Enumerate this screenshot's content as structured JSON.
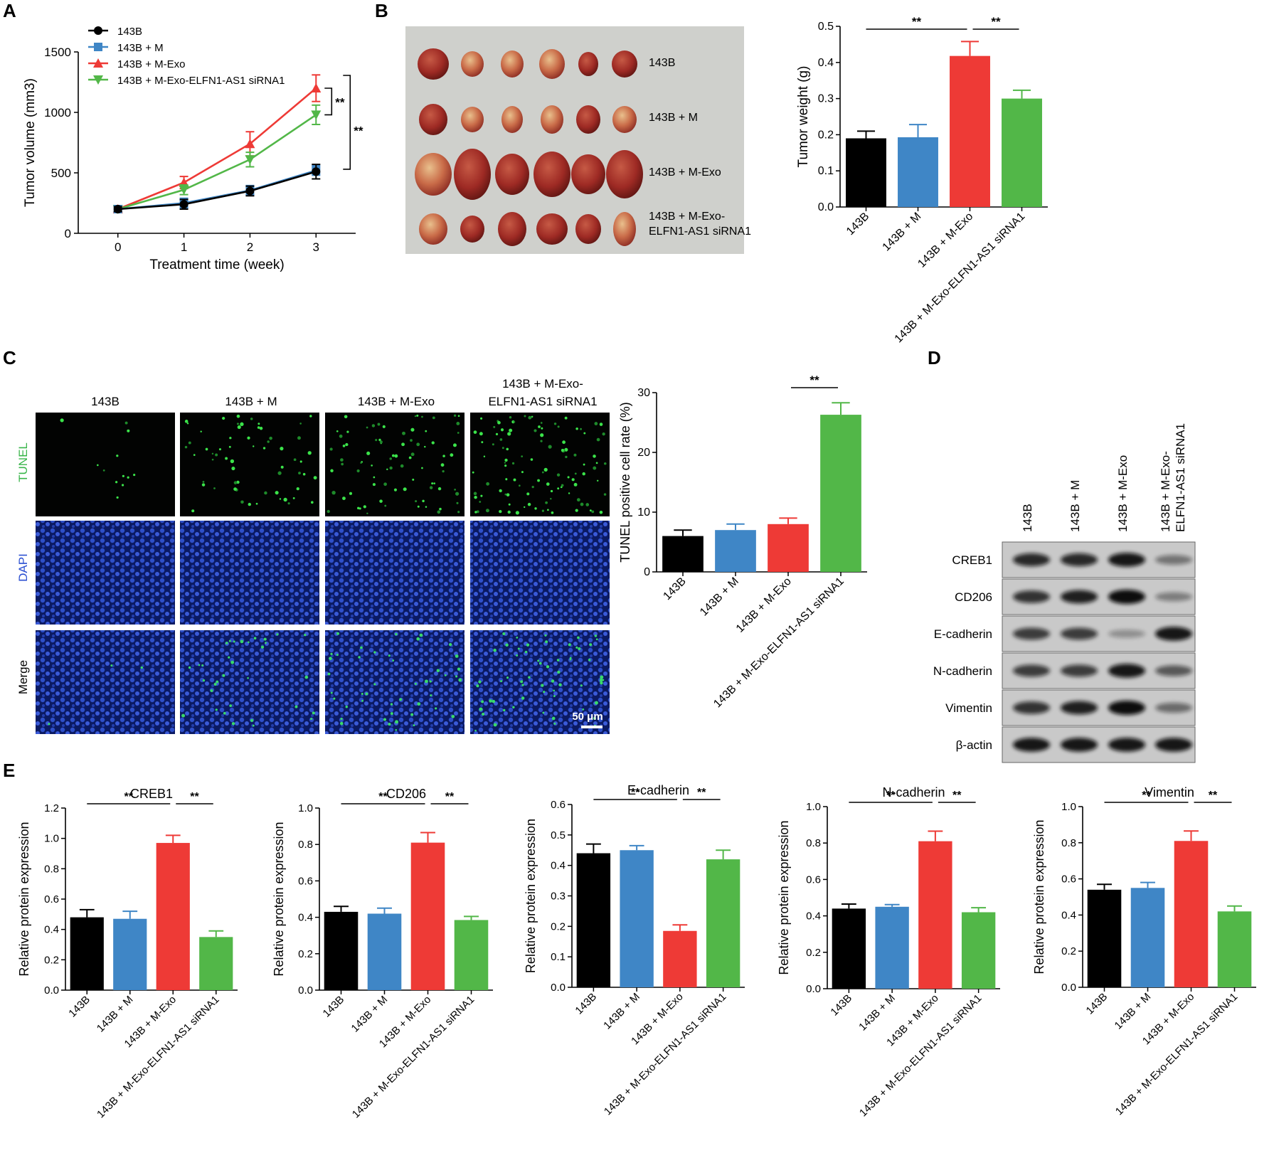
{
  "groups": [
    "143B",
    "143B + M",
    "143B + M-Exo",
    "143B + M-Exo-ELFN1-AS1 siRNA1"
  ],
  "group_colors": [
    "#000000",
    "#3f86c6",
    "#ee3a36",
    "#52b748"
  ],
  "significance_label": "**",
  "panel_A": {
    "letter": "A",
    "legend": [
      "143B",
      "143B + M",
      "143B + M-Exo",
      "143B + M-Exo-ELFN1-AS1 siRNA1"
    ],
    "markers": [
      "circle",
      "square",
      "triangle-up",
      "triangle-down"
    ]
  },
  "panel_B": {
    "letter": "B",
    "photo_labels": [
      "143B",
      "143B + M",
      "143B + M-Exo",
      "143B + M-Exo-",
      "ELFN1-AS1 siRNA1"
    ]
  },
  "panel_C": {
    "letter": "C",
    "column_labels": [
      "143B",
      "143B + M",
      "143B + M-Exo",
      "143B + M-Exo-",
      "ELFN1-AS1 siRNA1"
    ],
    "row_labels": [
      "TUNEL",
      "DAPI",
      "Merge"
    ],
    "row_label_colors": [
      "#39b54a",
      "#2b4fd1",
      "#000000"
    ],
    "scale_bar": "50 μm"
  },
  "panel_D": {
    "letter": "D",
    "lane_labels": [
      "143B",
      "143B + M",
      "143B + M-Exo",
      "143B + M-Exo-",
      "ELFN1-AS1 siRNA1"
    ],
    "blot_labels": [
      "CREB1",
      "CD206",
      "E-cadherin",
      "N-cadherin",
      "Vimentin",
      "β-actin"
    ],
    "band_intensity": [
      [
        0.85,
        0.85,
        0.95,
        0.45
      ],
      [
        0.8,
        0.9,
        1.0,
        0.4
      ],
      [
        0.75,
        0.75,
        0.3,
        0.95
      ],
      [
        0.75,
        0.75,
        0.95,
        0.6
      ],
      [
        0.8,
        0.9,
        1.0,
        0.5
      ],
      [
        0.95,
        0.95,
        0.95,
        0.95
      ]
    ]
  },
  "panel_E": {
    "letter": "E"
  },
  "chart_data": [
    {
      "id": "A",
      "type": "line",
      "xlabel": "Treatment time (week)",
      "ylabel": "Tumor volume (mm3)",
      "x": [
        0,
        1,
        2,
        3
      ],
      "xlim": [
        -0.6,
        3.6
      ],
      "ylim": [
        0,
        1500
      ],
      "yticks": [
        0,
        500,
        1000,
        1500
      ],
      "series": [
        {
          "name": "143B",
          "values": [
            200,
            240,
            350,
            510
          ],
          "errors": [
            20,
            40,
            40,
            60
          ]
        },
        {
          "name": "143B + M",
          "values": [
            200,
            250,
            355,
            520
          ],
          "errors": [
            20,
            40,
            40,
            40
          ]
        },
        {
          "name": "143B + M-Exo",
          "values": [
            200,
            420,
            740,
            1200
          ],
          "errors": [
            20,
            50,
            100,
            110
          ]
        },
        {
          "name": "143B + M-Exo-ELFN1-AS1 siRNA1",
          "values": [
            200,
            360,
            610,
            980
          ],
          "errors": [
            20,
            40,
            60,
            80
          ]
        }
      ],
      "significance": [
        {
          "a": "143B + M-Exo",
          "b": "143B + M-Exo-ELFN1-AS1 siRNA1",
          "label": "**"
        },
        {
          "a": "143B + M-Exo",
          "b": "143B",
          "label": "**"
        }
      ]
    },
    {
      "id": "B",
      "type": "bar",
      "ylabel": "Tumor weight (g)",
      "categories": [
        "143B",
        "143B + M",
        "143B + M-Exo",
        "143B + M-Exo-ELFN1-AS1 siRNA1"
      ],
      "values": [
        0.19,
        0.193,
        0.418,
        0.3
      ],
      "errors": [
        0.02,
        0.035,
        0.04,
        0.023
      ],
      "ylim": [
        0,
        0.5
      ],
      "yticks": [
        0,
        0.1,
        0.2,
        0.3,
        0.4,
        0.5
      ],
      "significance": [
        {
          "from": 0,
          "to": 2,
          "label": "**"
        },
        {
          "from": 2,
          "to": 3,
          "label": "**"
        }
      ]
    },
    {
      "id": "C",
      "type": "bar",
      "ylabel": "TUNEL positive cell rate (%)",
      "categories": [
        "143B",
        "143B + M",
        "143B + M-Exo",
        "143B + M-Exo-ELFN1-AS1 siRNA1"
      ],
      "values": [
        6,
        7,
        8,
        26.3
      ],
      "errors": [
        1,
        1,
        1,
        2
      ],
      "ylim": [
        0,
        30
      ],
      "yticks": [
        0,
        10,
        20,
        30
      ],
      "significance": [
        {
          "from": 2,
          "to": 3,
          "label": "**"
        }
      ]
    },
    {
      "id": "E1",
      "type": "bar",
      "title": "CREB1",
      "ylabel": "Relative protein expression",
      "categories": [
        "143B",
        "143B + M",
        "143B + M-Exo",
        "143B + M-Exo-ELFN1-AS1 siRNA1"
      ],
      "values": [
        0.48,
        0.47,
        0.97,
        0.35
      ],
      "errors": [
        0.05,
        0.05,
        0.05,
        0.04
      ],
      "ylim": [
        0,
        1.2
      ],
      "yticks": [
        0,
        0.2,
        0.4,
        0.6,
        0.8,
        1.0,
        1.2
      ],
      "significance": [
        {
          "from": 0,
          "to": 2,
          "label": "**"
        },
        {
          "from": 2,
          "to": 3,
          "label": "**"
        }
      ]
    },
    {
      "id": "E2",
      "type": "bar",
      "title": "CD206",
      "ylabel": "Relative protein expression",
      "categories": [
        "143B",
        "143B + M",
        "143B + M-Exo",
        "143B + M-Exo-ELFN1-AS1 siRNA1"
      ],
      "values": [
        0.43,
        0.42,
        0.81,
        0.385
      ],
      "errors": [
        0.03,
        0.03,
        0.055,
        0.02
      ],
      "ylim": [
        0,
        1.0
      ],
      "yticks": [
        0,
        0.2,
        0.4,
        0.6,
        0.8,
        1.0
      ],
      "significance": [
        {
          "from": 0,
          "to": 2,
          "label": "**"
        },
        {
          "from": 2,
          "to": 3,
          "label": "**"
        }
      ]
    },
    {
      "id": "E3",
      "type": "bar",
      "title": "E-cadherin",
      "ylabel": "Relative protein expression",
      "categories": [
        "143B",
        "143B + M",
        "143B + M-Exo",
        "143B + M-Exo-ELFN1-AS1 siRNA1"
      ],
      "values": [
        0.44,
        0.45,
        0.185,
        0.42
      ],
      "errors": [
        0.03,
        0.015,
        0.02,
        0.03
      ],
      "ylim": [
        0,
        0.6
      ],
      "yticks": [
        0,
        0.1,
        0.2,
        0.3,
        0.4,
        0.5,
        0.6
      ],
      "significance": [
        {
          "from": 0,
          "to": 2,
          "label": "**"
        },
        {
          "from": 2,
          "to": 3,
          "label": "**"
        }
      ]
    },
    {
      "id": "E4",
      "type": "bar",
      "title": "N-cadherin",
      "ylabel": "Relative protein expression",
      "categories": [
        "143B",
        "143B + M",
        "143B + M-Exo",
        "143B + M-Exo-ELFN1-AS1 siRNA1"
      ],
      "values": [
        0.44,
        0.45,
        0.81,
        0.42
      ],
      "errors": [
        0.025,
        0.012,
        0.055,
        0.025
      ],
      "ylim": [
        0,
        1.0
      ],
      "yticks": [
        0,
        0.2,
        0.4,
        0.6,
        0.8,
        1.0
      ],
      "significance": [
        {
          "from": 0,
          "to": 2,
          "label": "**"
        },
        {
          "from": 2,
          "to": 3,
          "label": "**"
        }
      ]
    },
    {
      "id": "E5",
      "type": "bar",
      "title": "Vimentin",
      "ylabel": "Relative protein expression",
      "categories": [
        "143B",
        "143B + M",
        "143B + M-Exo",
        "143B + M-Exo-ELFN1-AS1 siRNA1"
      ],
      "values": [
        0.54,
        0.55,
        0.81,
        0.42
      ],
      "errors": [
        0.03,
        0.03,
        0.055,
        0.03
      ],
      "ylim": [
        0,
        1.0
      ],
      "yticks": [
        0,
        0.2,
        0.4,
        0.6,
        0.8,
        1.0
      ],
      "significance": [
        {
          "from": 0,
          "to": 2,
          "label": "**"
        },
        {
          "from": 2,
          "to": 3,
          "label": "**"
        }
      ]
    }
  ]
}
